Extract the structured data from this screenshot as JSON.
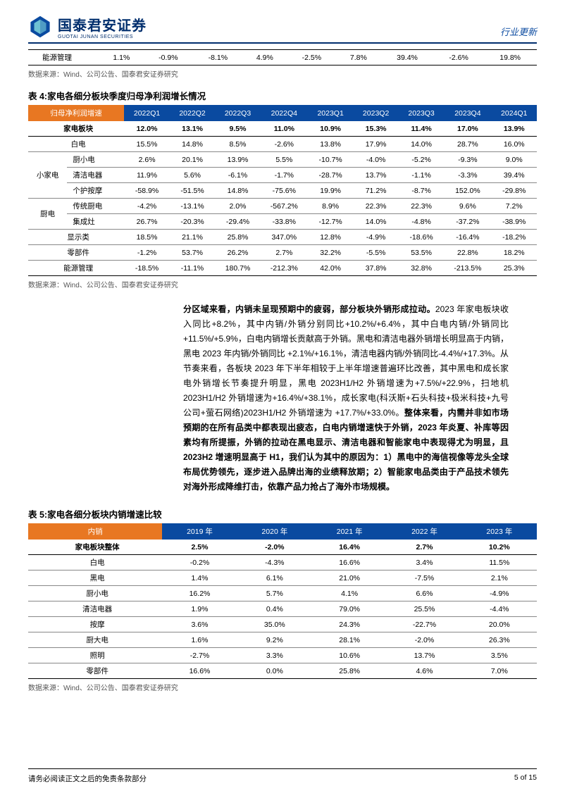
{
  "header": {
    "company_cn": "国泰君安证券",
    "company_en": "GUOTAI JUNAN SECURITIES",
    "doc_type": "行业更新",
    "logo_colors": {
      "outer": "#0a4aa0",
      "inner": "#6ec1d4"
    }
  },
  "top_row": {
    "label": "能源管理",
    "values": [
      "1.1%",
      "-0.9%",
      "-8.1%",
      "4.9%",
      "-2.5%",
      "7.8%",
      "39.4%",
      "-2.6%",
      "19.8%"
    ]
  },
  "source_note": "数据来源：Wind、公司公告、国泰君安证券研究",
  "table4": {
    "title": "表 4:家电各细分板块季度归母净利润增长情况",
    "corner": "归母净利润增速",
    "columns": [
      "2022Q1",
      "2022Q2",
      "2022Q3",
      "2022Q4",
      "2023Q1",
      "2023Q2",
      "2023Q3",
      "2023Q4",
      "2024Q1"
    ],
    "header_bg": "#0a4aa0",
    "corner_bg": "#e87722",
    "rows": [
      {
        "cat": "",
        "name": "家电板块",
        "bold": true,
        "values": [
          "12.0%",
          "13.1%",
          "9.5%",
          "11.0%",
          "10.9%",
          "15.3%",
          "11.4%",
          "17.0%",
          "13.9%"
        ]
      },
      {
        "cat": "",
        "name": "白电",
        "values": [
          "15.5%",
          "14.8%",
          "8.5%",
          "-2.6%",
          "13.8%",
          "17.9%",
          "14.0%",
          "28.7%",
          "16.0%"
        ]
      },
      {
        "cat": "小家电",
        "name": "厨小电",
        "rowspan": 3,
        "values": [
          "2.6%",
          "20.1%",
          "13.9%",
          "5.5%",
          "-10.7%",
          "-4.0%",
          "-5.2%",
          "-9.3%",
          "9.0%"
        ]
      },
      {
        "name": "清洁电器",
        "values": [
          "11.9%",
          "5.6%",
          "-6.1%",
          "-1.7%",
          "-28.7%",
          "13.7%",
          "-1.1%",
          "-3.3%",
          "39.4%"
        ]
      },
      {
        "name": "个护按摩",
        "values": [
          "-58.9%",
          "-51.5%",
          "14.8%",
          "-75.6%",
          "19.9%",
          "71.2%",
          "-8.7%",
          "152.0%",
          "-29.8%"
        ]
      },
      {
        "cat": "厨电",
        "name": "传统厨电",
        "rowspan": 2,
        "values": [
          "-4.2%",
          "-13.1%",
          "2.0%",
          "-567.2%",
          "8.9%",
          "22.3%",
          "22.3%",
          "9.6%",
          "7.2%"
        ]
      },
      {
        "name": "集成灶",
        "values": [
          "26.7%",
          "-20.3%",
          "-29.4%",
          "-33.8%",
          "-12.7%",
          "14.0%",
          "-4.8%",
          "-37.2%",
          "-38.9%"
        ]
      },
      {
        "cat": "",
        "name": "显示类",
        "values": [
          "18.5%",
          "21.1%",
          "25.8%",
          "347.0%",
          "12.8%",
          "-4.9%",
          "-18.6%",
          "-16.4%",
          "-18.2%"
        ]
      },
      {
        "cat": "",
        "name": "零部件",
        "values": [
          "-1.2%",
          "53.7%",
          "26.2%",
          "2.7%",
          "32.2%",
          "-5.5%",
          "53.5%",
          "22.8%",
          "18.2%"
        ]
      },
      {
        "cat": "",
        "name": "能源管理",
        "values": [
          "-18.5%",
          "-11.1%",
          "180.7%",
          "-212.3%",
          "42.0%",
          "37.8%",
          "32.8%",
          "-213.5%",
          "25.3%"
        ]
      }
    ]
  },
  "paragraph": {
    "lead_bold": "分区域来看，内销未呈现预期中的疲弱，部分板块外销形成拉动。",
    "body1": "2023 年家电板块收入同比+8.2%，其中内销/外销分别同比+10.2%/+6.4%，其中白电内销/外销同比+11.5%/+5.9%，白电内销增长贡献高于外销。黑电和清洁电器外销增长明显高于内销，黑电 2023 年内销/外销同比 +2.1%/+16.1%，清洁电器内销/外销同比-4.4%/+17.3%。从节奏来看，各板块 2023 年下半年相较于上半年增速普遍环比改善，其中黑电和成长家电外销增长节奏提升明显，黑电 2023H1/H2 外销增速为+7.5%/+22.9%，扫地机 2023H1/H2 外销增速为+16.4%/+38.1%，成长家电(科沃斯+石头科技+极米科技+九号公司+萤石网络)2023H1/H2 外销增速为 +17.7%/+33.0%。",
    "trail_bold": "整体来看，内需并非如市场预期的在所有品类中都表现出疲态，白电内销增速快于外销，2023 年炎夏、补库等因素均有所提振，外销的拉动在黑电显示、清洁电器和智能家电中表现得尤为明显，且 2023H2 增速明显高于 H1，我们认为其中的原因为：1）黑电中的海信视像等龙头全球布局优势领先，逐步进入品牌出海的业绩释放期；2）智能家电品类由于产品技术领先对海外形成降维打击，依靠产品力抢占了海外市场规模。"
  },
  "table5": {
    "title": "表 5:家电各细分板块内销增速比较",
    "corner": "内销",
    "columns": [
      "2019 年",
      "2020 年",
      "2021 年",
      "2022 年",
      "2023 年"
    ],
    "rows": [
      {
        "name": "家电板块整体",
        "bold": true,
        "values": [
          "2.5%",
          "-2.0%",
          "16.4%",
          "2.7%",
          "10.2%"
        ]
      },
      {
        "name": "白电",
        "values": [
          "-0.2%",
          "-4.3%",
          "16.6%",
          "3.4%",
          "11.5%"
        ]
      },
      {
        "name": "黑电",
        "values": [
          "1.4%",
          "6.1%",
          "21.0%",
          "-7.5%",
          "2.1%"
        ]
      },
      {
        "name": "厨小电",
        "values": [
          "16.2%",
          "5.7%",
          "4.1%",
          "6.6%",
          "-4.9%"
        ]
      },
      {
        "name": "清洁电器",
        "values": [
          "1.9%",
          "0.4%",
          "79.0%",
          "25.5%",
          "-4.4%"
        ]
      },
      {
        "name": "按摩",
        "values": [
          "3.6%",
          "35.0%",
          "24.3%",
          "-22.7%",
          "20.0%"
        ]
      },
      {
        "name": "厨大电",
        "values": [
          "1.6%",
          "9.2%",
          "28.1%",
          "-2.0%",
          "26.3%"
        ]
      },
      {
        "name": "照明",
        "values": [
          "-2.7%",
          "3.3%",
          "10.6%",
          "13.7%",
          "3.5%"
        ]
      },
      {
        "name": "零部件",
        "values": [
          "16.6%",
          "0.0%",
          "25.8%",
          "4.6%",
          "7.0%"
        ]
      }
    ]
  },
  "footer": {
    "disclaimer": "请务必阅读正文之后的免责条款部分",
    "page": "5 of 15"
  }
}
